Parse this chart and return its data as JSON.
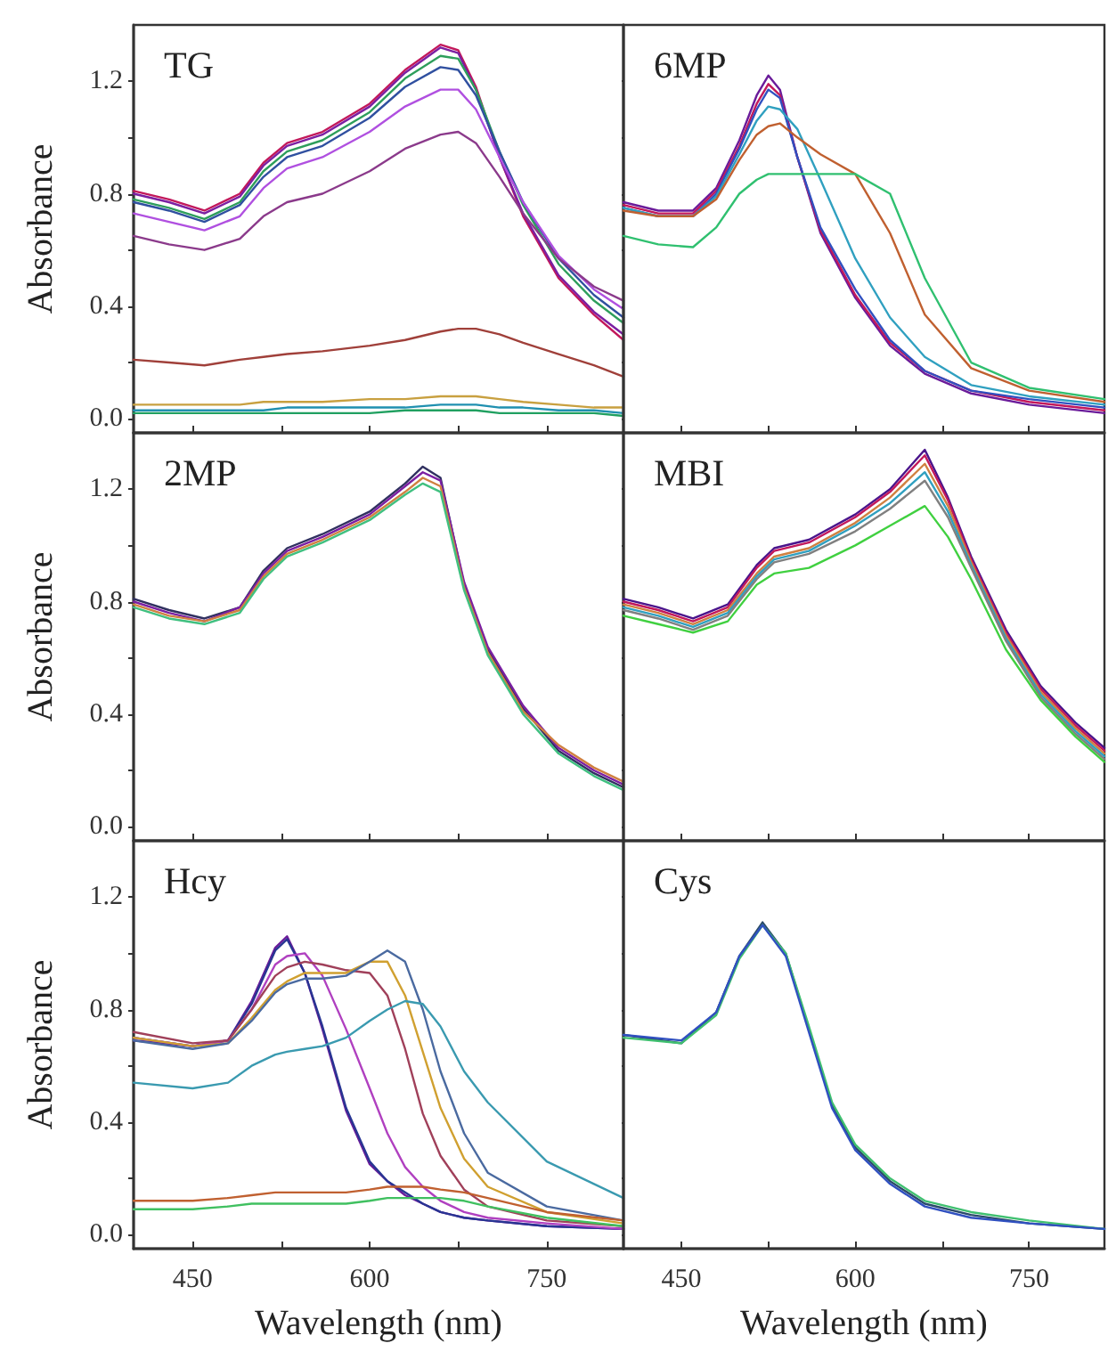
{
  "chart_data": [
    {
      "type": "line",
      "title": "TG",
      "ylabel": "Absorbance",
      "tick_labels": "y",
      "xlim": [
        400,
        815
      ],
      "ylim": [
        -0.05,
        1.4
      ],
      "xticks": [
        {
          "value": 450,
          "label": null
        },
        {
          "value": 525,
          "label": null
        },
        {
          "value": 600,
          "label": null
        },
        {
          "value": 675,
          "label": null
        },
        {
          "value": 750,
          "label": null
        }
      ],
      "yticks": [
        {
          "value": 0,
          "label": "0.0"
        },
        {
          "value": 0.2,
          "label": null
        },
        {
          "value": 0.4,
          "label": "0.4"
        },
        {
          "value": 0.6,
          "label": null
        },
        {
          "value": 0.8,
          "label": "0.8"
        },
        {
          "value": 1.0,
          "label": null
        },
        {
          "value": 1.2,
          "label": "1.2"
        }
      ],
      "x": [
        400,
        430,
        460,
        490,
        510,
        530,
        560,
        600,
        630,
        660,
        675,
        690,
        710,
        730,
        760,
        790,
        815
      ],
      "series": [
        {
          "color": "#c2185b",
          "values": [
            0.81,
            0.78,
            0.74,
            0.8,
            0.91,
            0.98,
            1.02,
            1.12,
            1.24,
            1.33,
            1.31,
            1.18,
            0.93,
            0.72,
            0.5,
            0.37,
            0.28
          ]
        },
        {
          "color": "#7b1fa2",
          "values": [
            0.8,
            0.77,
            0.73,
            0.79,
            0.9,
            0.97,
            1.01,
            1.11,
            1.23,
            1.32,
            1.3,
            1.17,
            0.93,
            0.73,
            0.51,
            0.38,
            0.3
          ]
        },
        {
          "color": "#2e9e5b",
          "values": [
            0.78,
            0.75,
            0.71,
            0.77,
            0.88,
            0.95,
            0.99,
            1.09,
            1.21,
            1.29,
            1.28,
            1.17,
            0.95,
            0.76,
            0.55,
            0.42,
            0.34
          ]
        },
        {
          "color": "#3050a0",
          "values": [
            0.77,
            0.74,
            0.7,
            0.76,
            0.86,
            0.93,
            0.97,
            1.07,
            1.18,
            1.25,
            1.24,
            1.15,
            0.95,
            0.77,
            0.57,
            0.44,
            0.36
          ]
        },
        {
          "color": "#b050e0",
          "values": [
            0.73,
            0.7,
            0.67,
            0.72,
            0.82,
            0.89,
            0.93,
            1.02,
            1.11,
            1.17,
            1.17,
            1.1,
            0.93,
            0.77,
            0.58,
            0.46,
            0.39
          ]
        },
        {
          "color": "#8b3a8b",
          "values": [
            0.65,
            0.62,
            0.6,
            0.64,
            0.72,
            0.77,
            0.8,
            0.88,
            0.96,
            1.01,
            1.02,
            0.98,
            0.86,
            0.73,
            0.57,
            0.47,
            0.42
          ]
        },
        {
          "color": "#a0403a",
          "values": [
            0.21,
            0.2,
            0.19,
            0.21,
            0.22,
            0.23,
            0.24,
            0.26,
            0.28,
            0.31,
            0.32,
            0.32,
            0.3,
            0.27,
            0.23,
            0.19,
            0.15
          ]
        },
        {
          "color": "#c8a040",
          "values": [
            0.05,
            0.05,
            0.05,
            0.05,
            0.06,
            0.06,
            0.06,
            0.07,
            0.07,
            0.08,
            0.08,
            0.08,
            0.07,
            0.06,
            0.05,
            0.04,
            0.04
          ]
        },
        {
          "color": "#2090b0",
          "values": [
            0.03,
            0.03,
            0.03,
            0.03,
            0.03,
            0.04,
            0.04,
            0.04,
            0.04,
            0.05,
            0.05,
            0.05,
            0.04,
            0.04,
            0.03,
            0.03,
            0.02
          ]
        },
        {
          "color": "#20a060",
          "values": [
            0.02,
            0.02,
            0.02,
            0.02,
            0.02,
            0.02,
            0.02,
            0.02,
            0.03,
            0.03,
            0.03,
            0.03,
            0.02,
            0.02,
            0.02,
            0.02,
            0.01
          ]
        }
      ]
    },
    {
      "type": "line",
      "title": "6MP",
      "tick_labels": false,
      "xlim": [
        400,
        815
      ],
      "ylim": [
        -0.05,
        1.4
      ],
      "xticks": [
        {
          "value": 450,
          "label": null
        },
        {
          "value": 525,
          "label": null
        },
        {
          "value": 600,
          "label": null
        },
        {
          "value": 675,
          "label": null
        },
        {
          "value": 750,
          "label": null
        }
      ],
      "yticks": [
        {
          "value": 0,
          "label": null
        },
        {
          "value": 0.2,
          "label": null
        },
        {
          "value": 0.4,
          "label": null
        },
        {
          "value": 0.6,
          "label": null
        },
        {
          "value": 0.8,
          "label": null
        },
        {
          "value": 1.0,
          "label": null
        },
        {
          "value": 1.2,
          "label": null
        }
      ],
      "x": [
        400,
        430,
        460,
        480,
        500,
        515,
        525,
        535,
        550,
        570,
        600,
        630,
        660,
        700,
        750,
        815
      ],
      "series": [
        {
          "color": "#6a1b9a",
          "values": [
            0.77,
            0.74,
            0.74,
            0.82,
            0.99,
            1.15,
            1.22,
            1.17,
            0.93,
            0.66,
            0.43,
            0.26,
            0.16,
            0.09,
            0.05,
            0.02
          ]
        },
        {
          "color": "#c2185b",
          "values": [
            0.76,
            0.73,
            0.73,
            0.81,
            0.97,
            1.12,
            1.19,
            1.15,
            0.93,
            0.67,
            0.44,
            0.27,
            0.17,
            0.1,
            0.06,
            0.03
          ]
        },
        {
          "color": "#3050c0",
          "values": [
            0.75,
            0.72,
            0.72,
            0.8,
            0.96,
            1.1,
            1.17,
            1.14,
            0.93,
            0.68,
            0.46,
            0.28,
            0.17,
            0.1,
            0.07,
            0.04
          ]
        },
        {
          "color": "#30a0c0",
          "values": [
            0.75,
            0.72,
            0.72,
            0.79,
            0.94,
            1.06,
            1.11,
            1.1,
            1.03,
            0.85,
            0.57,
            0.36,
            0.22,
            0.12,
            0.08,
            0.05
          ]
        },
        {
          "color": "#c06030",
          "values": [
            0.74,
            0.72,
            0.72,
            0.78,
            0.92,
            1.01,
            1.04,
            1.05,
            1.0,
            0.94,
            0.87,
            0.66,
            0.37,
            0.18,
            0.1,
            0.06
          ]
        },
        {
          "color": "#30c070",
          "values": [
            0.65,
            0.62,
            0.61,
            0.68,
            0.8,
            0.85,
            0.87,
            0.87,
            0.87,
            0.87,
            0.87,
            0.8,
            0.5,
            0.2,
            0.11,
            0.07
          ]
        }
      ]
    },
    {
      "type": "line",
      "title": "2MP",
      "ylabel": "Absorbance",
      "tick_labels": "y",
      "xlim": [
        400,
        815
      ],
      "ylim": [
        -0.05,
        1.4
      ],
      "xticks": [
        {
          "value": 450,
          "label": null
        },
        {
          "value": 525,
          "label": null
        },
        {
          "value": 600,
          "label": null
        },
        {
          "value": 675,
          "label": null
        },
        {
          "value": 750,
          "label": null
        }
      ],
      "yticks": [
        {
          "value": 0,
          "label": "0.0"
        },
        {
          "value": 0.2,
          "label": null
        },
        {
          "value": 0.4,
          "label": "0.4"
        },
        {
          "value": 0.6,
          "label": null
        },
        {
          "value": 0.8,
          "label": "0.8"
        },
        {
          "value": 1.0,
          "label": null
        },
        {
          "value": 1.2,
          "label": "1.2"
        }
      ],
      "x": [
        400,
        430,
        460,
        490,
        510,
        530,
        560,
        600,
        630,
        645,
        660,
        680,
        700,
        730,
        760,
        790,
        815
      ],
      "series": [
        {
          "color": "#303060",
          "values": [
            0.81,
            0.77,
            0.74,
            0.78,
            0.91,
            0.99,
            1.04,
            1.12,
            1.22,
            1.28,
            1.24,
            0.86,
            0.63,
            0.42,
            0.27,
            0.19,
            0.14
          ]
        },
        {
          "color": "#7b1fa2",
          "values": [
            0.8,
            0.76,
            0.73,
            0.78,
            0.9,
            0.98,
            1.03,
            1.11,
            1.21,
            1.26,
            1.23,
            0.87,
            0.64,
            0.43,
            0.28,
            0.2,
            0.15
          ]
        },
        {
          "color": "#d08040",
          "values": [
            0.79,
            0.75,
            0.73,
            0.77,
            0.89,
            0.97,
            1.02,
            1.1,
            1.19,
            1.24,
            1.21,
            0.85,
            0.62,
            0.41,
            0.29,
            0.21,
            0.16
          ]
        },
        {
          "color": "#40c080",
          "values": [
            0.78,
            0.74,
            0.72,
            0.76,
            0.88,
            0.96,
            1.01,
            1.09,
            1.18,
            1.22,
            1.19,
            0.84,
            0.61,
            0.4,
            0.26,
            0.18,
            0.13
          ]
        }
      ]
    },
    {
      "type": "line",
      "title": "MBI",
      "tick_labels": false,
      "xlim": [
        400,
        815
      ],
      "ylim": [
        -0.05,
        1.4
      ],
      "xticks": [
        {
          "value": 450,
          "label": null
        },
        {
          "value": 525,
          "label": null
        },
        {
          "value": 600,
          "label": null
        },
        {
          "value": 675,
          "label": null
        },
        {
          "value": 750,
          "label": null
        }
      ],
      "yticks": [
        {
          "value": 0,
          "label": null
        },
        {
          "value": 0.2,
          "label": null
        },
        {
          "value": 0.4,
          "label": null
        },
        {
          "value": 0.6,
          "label": null
        },
        {
          "value": 0.8,
          "label": null
        },
        {
          "value": 1.0,
          "label": null
        },
        {
          "value": 1.2,
          "label": null
        }
      ],
      "x": [
        400,
        430,
        460,
        490,
        515,
        530,
        560,
        600,
        630,
        660,
        680,
        700,
        730,
        760,
        790,
        815
      ],
      "series": [
        {
          "color": "#4a148c",
          "values": [
            0.81,
            0.78,
            0.74,
            0.79,
            0.93,
            0.99,
            1.02,
            1.11,
            1.2,
            1.34,
            1.17,
            0.96,
            0.7,
            0.5,
            0.37,
            0.28
          ]
        },
        {
          "color": "#c2185b",
          "values": [
            0.8,
            0.77,
            0.73,
            0.78,
            0.92,
            0.98,
            1.01,
            1.1,
            1.19,
            1.32,
            1.16,
            0.95,
            0.69,
            0.49,
            0.36,
            0.27
          ]
        },
        {
          "color": "#d08040",
          "values": [
            0.79,
            0.76,
            0.72,
            0.77,
            0.9,
            0.96,
            0.99,
            1.08,
            1.17,
            1.29,
            1.14,
            0.94,
            0.68,
            0.48,
            0.35,
            0.26
          ]
        },
        {
          "color": "#30a0c0",
          "values": [
            0.78,
            0.75,
            0.71,
            0.76,
            0.89,
            0.95,
            0.98,
            1.07,
            1.15,
            1.26,
            1.12,
            0.93,
            0.67,
            0.47,
            0.34,
            0.25
          ]
        },
        {
          "color": "#808080",
          "values": [
            0.77,
            0.74,
            0.7,
            0.75,
            0.88,
            0.94,
            0.97,
            1.05,
            1.13,
            1.23,
            1.1,
            0.92,
            0.66,
            0.46,
            0.33,
            0.24
          ]
        },
        {
          "color": "#40d040",
          "values": [
            0.75,
            0.72,
            0.69,
            0.73,
            0.86,
            0.9,
            0.92,
            1.0,
            1.07,
            1.14,
            1.03,
            0.88,
            0.63,
            0.45,
            0.32,
            0.23
          ]
        }
      ]
    },
    {
      "type": "line",
      "title": "Hcy",
      "xlabel": "Wavelength (nm)",
      "ylabel": "Absorbance",
      "xlim": [
        400,
        815
      ],
      "ylim": [
        -0.05,
        1.4
      ],
      "xticks": [
        450,
        {
          "value": 525,
          "label": null
        },
        600,
        {
          "value": 675,
          "label": null
        },
        750
      ],
      "yticks": [
        {
          "value": 0,
          "label": "0.0"
        },
        {
          "value": 0.2,
          "label": null
        },
        {
          "value": 0.4,
          "label": "0.4"
        },
        {
          "value": 0.6,
          "label": null
        },
        {
          "value": 0.8,
          "label": "0.8"
        },
        {
          "value": 1.0,
          "label": null
        },
        {
          "value": 1.2,
          "label": "1.2"
        }
      ],
      "x": [
        400,
        450,
        480,
        500,
        520,
        530,
        545,
        560,
        580,
        600,
        615,
        630,
        645,
        660,
        680,
        700,
        750,
        815
      ],
      "series": [
        {
          "color": "#6a1b9a",
          "values": [
            0.69,
            0.67,
            0.69,
            0.83,
            1.02,
            1.06,
            0.93,
            0.73,
            0.44,
            0.25,
            0.19,
            0.14,
            0.11,
            0.08,
            0.06,
            0.05,
            0.03,
            0.02
          ]
        },
        {
          "color": "#283593",
          "values": [
            0.7,
            0.67,
            0.69,
            0.82,
            1.01,
            1.05,
            0.93,
            0.74,
            0.45,
            0.26,
            0.19,
            0.15,
            0.11,
            0.08,
            0.06,
            0.05,
            0.03,
            0.02
          ]
        },
        {
          "color": "#b040c0",
          "values": [
            0.7,
            0.67,
            0.69,
            0.8,
            0.96,
            0.99,
            1.0,
            0.92,
            0.73,
            0.52,
            0.36,
            0.24,
            0.17,
            0.12,
            0.08,
            0.06,
            0.04,
            0.02
          ]
        },
        {
          "color": "#a0405a",
          "values": [
            0.72,
            0.68,
            0.69,
            0.8,
            0.92,
            0.95,
            0.97,
            0.96,
            0.94,
            0.93,
            0.85,
            0.66,
            0.43,
            0.28,
            0.16,
            0.1,
            0.05,
            0.03
          ]
        },
        {
          "color": "#d0a030",
          "values": [
            0.7,
            0.67,
            0.68,
            0.77,
            0.87,
            0.9,
            0.93,
            0.93,
            0.93,
            0.97,
            0.97,
            0.85,
            0.65,
            0.45,
            0.27,
            0.17,
            0.08,
            0.04
          ]
        },
        {
          "color": "#4a6aa0",
          "values": [
            0.69,
            0.66,
            0.68,
            0.76,
            0.86,
            0.89,
            0.91,
            0.91,
            0.92,
            0.97,
            1.01,
            0.97,
            0.8,
            0.58,
            0.36,
            0.22,
            0.1,
            0.05
          ]
        },
        {
          "color": "#3a9ab0",
          "values": [
            0.54,
            0.52,
            0.54,
            0.6,
            0.64,
            0.65,
            0.66,
            0.67,
            0.7,
            0.76,
            0.8,
            0.83,
            0.82,
            0.74,
            0.58,
            0.47,
            0.26,
            0.13
          ]
        },
        {
          "color": "#c06030",
          "values": [
            0.12,
            0.12,
            0.13,
            0.14,
            0.15,
            0.15,
            0.15,
            0.15,
            0.15,
            0.16,
            0.17,
            0.17,
            0.17,
            0.16,
            0.15,
            0.13,
            0.08,
            0.05
          ]
        },
        {
          "color": "#40c060",
          "values": [
            0.09,
            0.09,
            0.1,
            0.11,
            0.11,
            0.11,
            0.11,
            0.11,
            0.11,
            0.12,
            0.13,
            0.13,
            0.13,
            0.13,
            0.12,
            0.1,
            0.06,
            0.03
          ]
        }
      ]
    },
    {
      "type": "line",
      "title": "Cys",
      "xlabel": "Wavelength (nm)",
      "tick_labels": "x",
      "xlim": [
        400,
        815
      ],
      "ylim": [
        -0.05,
        1.4
      ],
      "xticks": [
        450,
        {
          "value": 525,
          "label": null
        },
        600,
        {
          "value": 675,
          "label": null
        },
        750
      ],
      "yticks": [
        {
          "value": 0,
          "label": null
        },
        {
          "value": 0.2,
          "label": null
        },
        {
          "value": 0.4,
          "label": null
        },
        {
          "value": 0.6,
          "label": null
        },
        {
          "value": 0.8,
          "label": null
        },
        {
          "value": 1.0,
          "label": null
        },
        {
          "value": 1.2,
          "label": null
        }
      ],
      "x": [
        400,
        450,
        480,
        500,
        520,
        540,
        560,
        580,
        600,
        630,
        660,
        700,
        750,
        815
      ],
      "series": [
        {
          "color": "#2a4a6a",
          "values": [
            0.71,
            0.68,
            0.79,
            0.99,
            1.11,
            1.0,
            0.73,
            0.46,
            0.31,
            0.19,
            0.11,
            0.07,
            0.04,
            0.02
          ]
        },
        {
          "color": "#40c070",
          "values": [
            0.7,
            0.68,
            0.78,
            0.98,
            1.1,
            1.0,
            0.74,
            0.47,
            0.32,
            0.2,
            0.12,
            0.08,
            0.05,
            0.02
          ]
        },
        {
          "color": "#3050c0",
          "values": [
            0.71,
            0.69,
            0.79,
            0.99,
            1.1,
            0.99,
            0.72,
            0.45,
            0.3,
            0.18,
            0.1,
            0.06,
            0.04,
            0.02
          ]
        }
      ]
    }
  ]
}
